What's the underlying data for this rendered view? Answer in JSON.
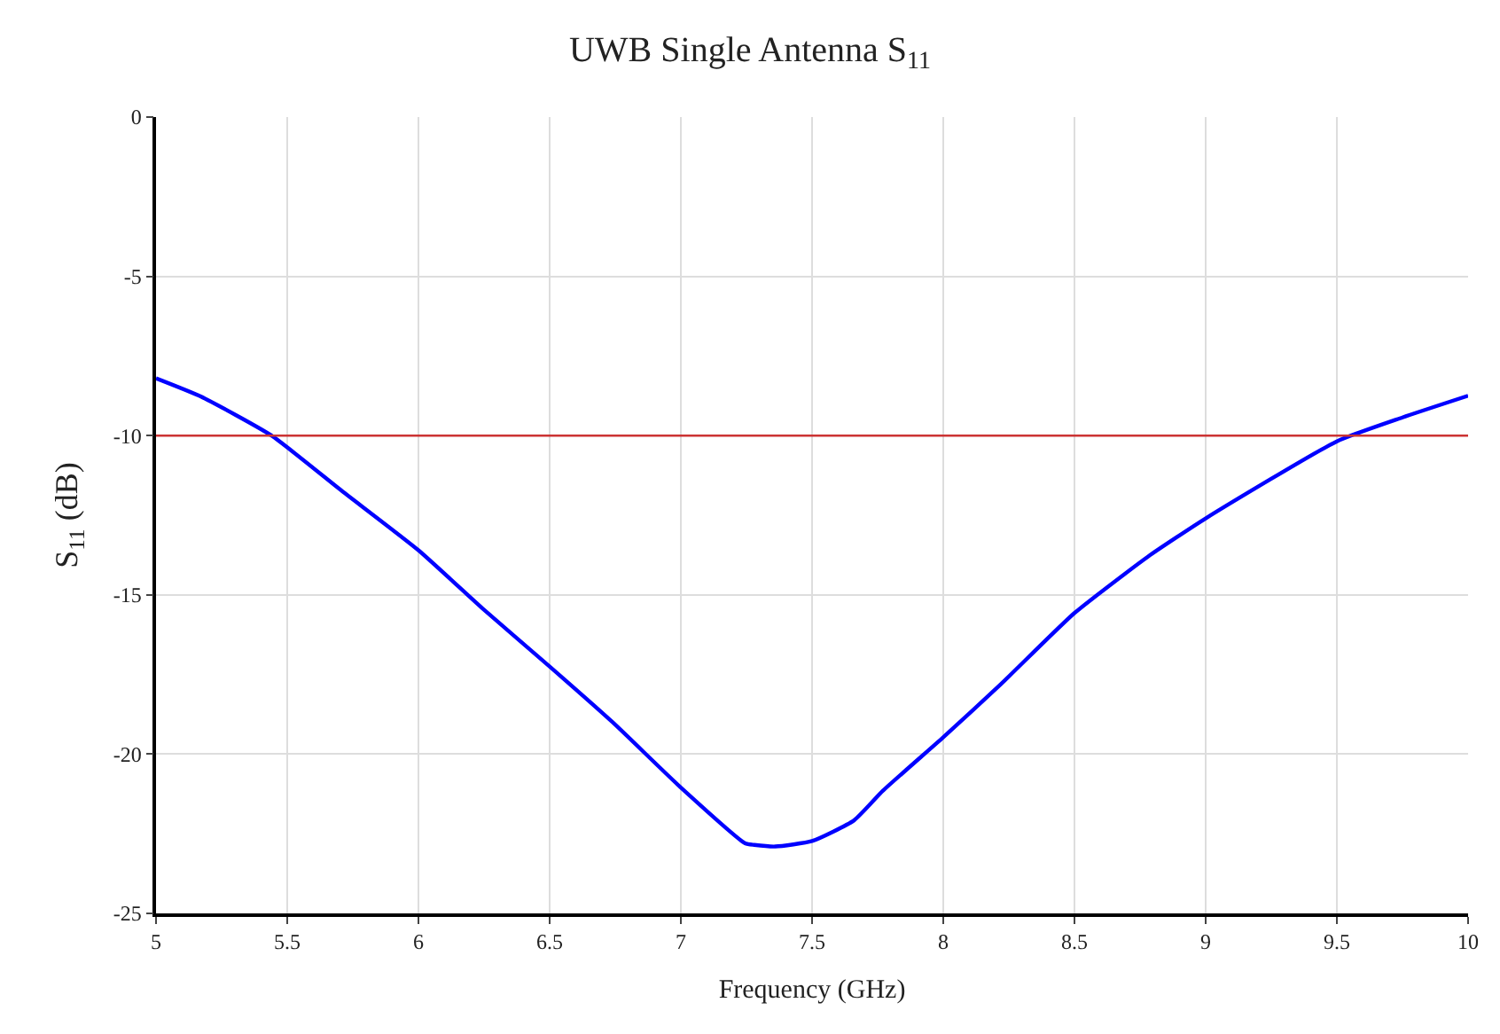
{
  "chart_data": {
    "type": "line",
    "title": "UWB Single Antenna S$_{11}$",
    "xlabel": "Frequency (GHz)",
    "ylabel": "S$_{11}$ (dB)",
    "x": [
      5.0,
      5.17,
      5.44,
      5.71,
      6.0,
      6.25,
      6.5,
      6.74,
      7.0,
      7.245,
      7.28,
      7.36,
      7.5,
      7.66,
      7.77,
      8.0,
      8.22,
      8.5,
      8.78,
      9.0,
      9.5,
      9.75,
      10.0
    ],
    "series": [
      {
        "color": "#0000ff",
        "values": [
          -8.2,
          -8.77,
          -10.0,
          -11.75,
          -13.6,
          -15.47,
          -17.25,
          -19.0,
          -21.05,
          -22.8,
          -22.85,
          -22.9,
          -22.73,
          -22.08,
          -21.15,
          -19.47,
          -17.8,
          -15.57,
          -13.8,
          -12.6,
          -10.18,
          -9.43,
          -8.75
        ]
      }
    ],
    "xlim": [
      5,
      10
    ],
    "xticks": [
      5,
      5.5,
      6,
      6.5,
      7,
      7.5,
      8,
      8.5,
      9,
      9.5,
      10
    ],
    "ylim": [
      -25,
      0
    ],
    "yticks": [
      -25,
      -20,
      -15,
      -10,
      -5,
      0
    ],
    "ref_lines": [
      {
        "axis": "y",
        "value": -10,
        "color": "#cc3333"
      }
    ],
    "grid": true,
    "marker": "none",
    "line_style": "solid"
  }
}
